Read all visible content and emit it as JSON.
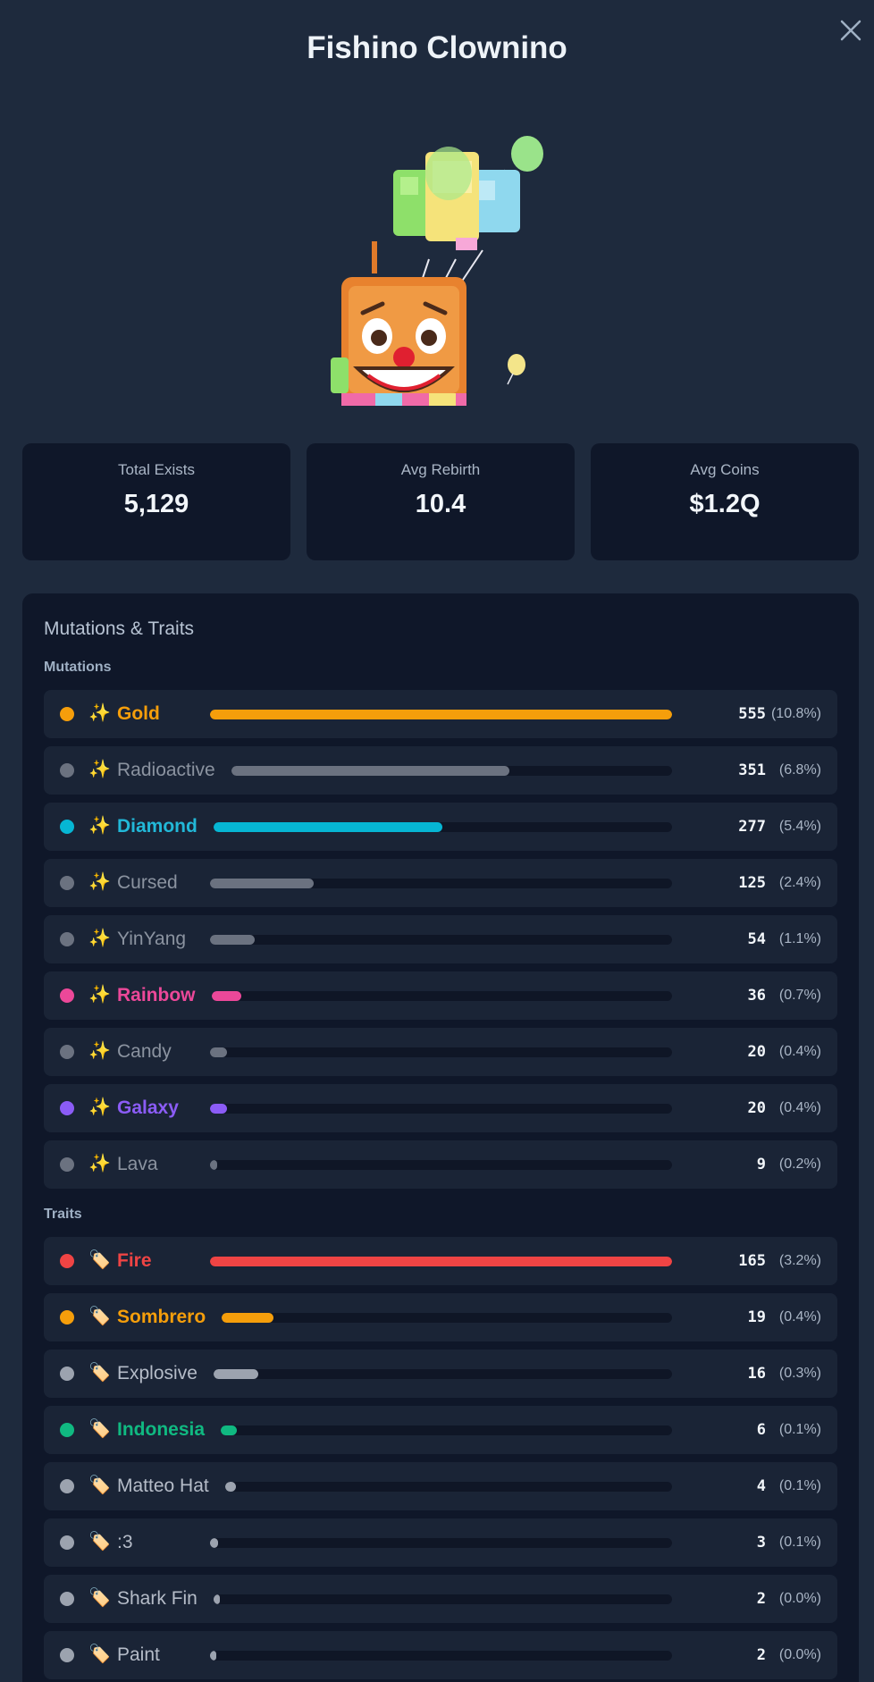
{
  "header": {
    "title": "Fishino Clownino",
    "close_icon": "close-icon"
  },
  "stats": [
    {
      "label": "Total Exists",
      "value": "5,129"
    },
    {
      "label": "Avg Rebirth",
      "value": "10.4"
    },
    {
      "label": "Avg Coins",
      "value": "$1.2Q"
    }
  ],
  "panel": {
    "title": "Mutations & Traits",
    "mutations_label": "Mutations",
    "traits_label": "Traits"
  },
  "mutations": [
    {
      "name": "Gold",
      "emoji": "✨",
      "count": "555",
      "pct": "(10.8%)",
      "fraction": 1.0,
      "color": "#f59e0b",
      "label_color": "#f59e0b",
      "bold": true
    },
    {
      "name": "Radioactive",
      "emoji": "✨",
      "count": "351",
      "pct": "(6.8%)",
      "fraction": 0.632,
      "color": "#6b7280",
      "label_color": "#8b93a0",
      "bold": false
    },
    {
      "name": "Diamond",
      "emoji": "✨",
      "count": "277",
      "pct": "(5.4%)",
      "fraction": 0.499,
      "color": "#06b6d4",
      "label_color": "#22b8d8",
      "bold": true
    },
    {
      "name": "Cursed",
      "emoji": "✨",
      "count": "125",
      "pct": "(2.4%)",
      "fraction": 0.225,
      "color": "#6b7280",
      "label_color": "#8b93a0",
      "bold": false
    },
    {
      "name": "YinYang",
      "emoji": "✨",
      "count": "54",
      "pct": "(1.1%)",
      "fraction": 0.097,
      "color": "#6b7280",
      "label_color": "#8b93a0",
      "bold": false
    },
    {
      "name": "Rainbow",
      "emoji": "✨",
      "count": "36",
      "pct": "(0.7%)",
      "fraction": 0.065,
      "color": "#ec4899",
      "label_color": "#ec4899",
      "bold": true
    },
    {
      "name": "Candy",
      "emoji": "✨",
      "count": "20",
      "pct": "(0.4%)",
      "fraction": 0.036,
      "color": "#6b7280",
      "label_color": "#8b93a0",
      "bold": false
    },
    {
      "name": "Galaxy",
      "emoji": "✨",
      "count": "20",
      "pct": "(0.4%)",
      "fraction": 0.036,
      "color": "#8b5cf6",
      "label_color": "#8b5cf6",
      "bold": true
    },
    {
      "name": "Lava",
      "emoji": "✨",
      "count": "9",
      "pct": "(0.2%)",
      "fraction": 0.016,
      "color": "#6b7280",
      "label_color": "#8b93a0",
      "bold": false
    }
  ],
  "traits": [
    {
      "name": "Fire",
      "emoji": "🏷️",
      "count": "165",
      "pct": "(3.2%)",
      "fraction": 1.0,
      "color": "#ef4444",
      "label_color": "#ef4444",
      "bold": true
    },
    {
      "name": "Sombrero",
      "emoji": "🏷️",
      "count": "19",
      "pct": "(0.4%)",
      "fraction": 0.115,
      "color": "#f59e0b",
      "label_color": "#f59e0b",
      "bold": true
    },
    {
      "name": "Explosive",
      "emoji": "🏷️",
      "count": "16",
      "pct": "(0.3%)",
      "fraction": 0.097,
      "color": "#9ca3af",
      "label_color": "#b5bcc8",
      "bold": false
    },
    {
      "name": "Indonesia",
      "emoji": "🏷️",
      "count": "6",
      "pct": "(0.1%)",
      "fraction": 0.036,
      "color": "#10b981",
      "label_color": "#10b981",
      "bold": true
    },
    {
      "name": "Matteo Hat",
      "emoji": "🏷️",
      "count": "4",
      "pct": "(0.1%)",
      "fraction": 0.024,
      "color": "#9ca3af",
      "label_color": "#b5bcc8",
      "bold": false
    },
    {
      "name": ":3",
      "emoji": "🏷️",
      "count": "3",
      "pct": "(0.1%)",
      "fraction": 0.018,
      "color": "#9ca3af",
      "label_color": "#b5bcc8",
      "bold": false
    },
    {
      "name": "Shark Fin",
      "emoji": "🏷️",
      "count": "2",
      "pct": "(0.0%)",
      "fraction": 0.012,
      "color": "#9ca3af",
      "label_color": "#b5bcc8",
      "bold": false
    },
    {
      "name": "Paint",
      "emoji": "🏷️",
      "count": "2",
      "pct": "(0.0%)",
      "fraction": 0.012,
      "color": "#9ca3af",
      "label_color": "#b5bcc8",
      "bold": false
    }
  ]
}
